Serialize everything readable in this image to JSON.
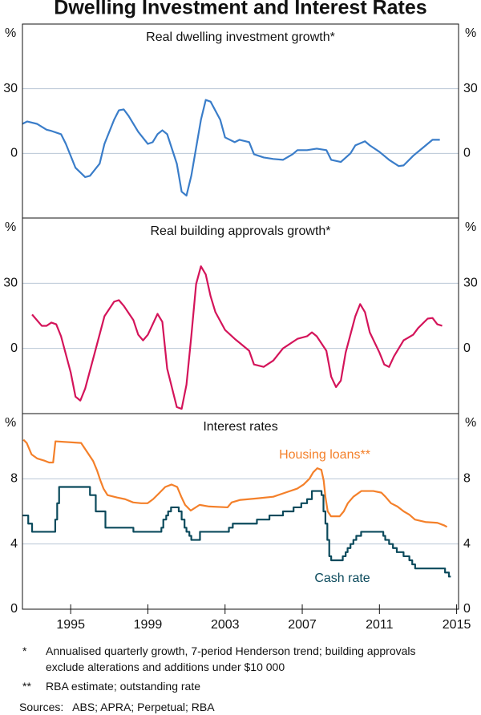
{
  "title": "Dwelling Investment and Interest Rates",
  "chart_data": [
    {
      "type": "line",
      "title": "Real dwelling investment growth*",
      "y_unit": "%",
      "y2_unit": "%",
      "xlim": [
        1992.5,
        2015.1
      ],
      "ylim": [
        -30,
        60
      ],
      "yticks": [
        0,
        30
      ],
      "y2lim": [
        -30,
        60
      ],
      "y2ticks": [
        0,
        30
      ],
      "grid": true,
      "series": [
        {
          "color": "#3a7dc9",
          "x": [
            1992.5,
            1992.75,
            1993.25,
            1993.75,
            1994,
            1994.5,
            1994.75,
            1995.25,
            1995.75,
            1996,
            1996.5,
            1996.75,
            1997.25,
            1997.5,
            1997.75,
            1998,
            1998.5,
            1999,
            1999.25,
            1999.5,
            1999.75,
            2000,
            2000.5,
            2000.75,
            2001,
            2001.25,
            2001.75,
            2002,
            2002.25,
            2002.75,
            2003,
            2003.5,
            2003.75,
            2004.25,
            2004.5,
            2005,
            2005.5,
            2006,
            2006.5,
            2006.75,
            2007.25,
            2007.75,
            2008.25,
            2008.5,
            2009,
            2009.5,
            2009.75,
            2010.25,
            2010.5,
            2011,
            2011.5,
            2012,
            2012.25,
            2012.75,
            2013.25,
            2013.75,
            2014.13
          ],
          "values": [
            13.7,
            14.8,
            13.7,
            11,
            10.4,
            8.9,
            4.4,
            -6.7,
            -11,
            -10.4,
            -4.8,
            4.4,
            15.6,
            20,
            20.4,
            17.4,
            10,
            4.4,
            5.2,
            8.9,
            10.7,
            8.9,
            -4.8,
            -17.8,
            -19.6,
            -10.4,
            15.6,
            24.8,
            24,
            15.6,
            7.4,
            5.2,
            6.3,
            5.2,
            -0.4,
            -1.9,
            -2.6,
            -3,
            -0.4,
            1.5,
            1.5,
            2.2,
            1.5,
            -3,
            -4,
            0,
            3.7,
            5.6,
            3.7,
            0.7,
            -3,
            -5.9,
            -5.6,
            -1.1,
            2.6,
            6.3,
            6.3
          ]
        }
      ]
    },
    {
      "type": "line",
      "title": "Real building approvals growth*",
      "y_unit": "%",
      "y2_unit": "%",
      "xlim": [
        1992.5,
        2015.1
      ],
      "ylim": [
        -30,
        60
      ],
      "yticks": [
        0,
        30
      ],
      "y2lim": [
        -30,
        60
      ],
      "y2ticks": [
        0,
        30
      ],
      "grid": true,
      "series": [
        {
          "color": "#d4145a",
          "x": [
            1993,
            1993.5,
            1993.75,
            1994,
            1994.25,
            1994.5,
            1995,
            1995.25,
            1995.5,
            1995.75,
            1996.25,
            1996.75,
            1997.25,
            1997.5,
            1997.75,
            1998.25,
            1998.5,
            1998.75,
            1999,
            1999.5,
            1999.75,
            2000,
            2000.5,
            2000.75,
            2001,
            2001.25,
            2001.5,
            2001.75,
            2002,
            2002.25,
            2002.5,
            2003,
            2003.5,
            2003.75,
            2004.25,
            2004.5,
            2005,
            2005.5,
            2006,
            2006.75,
            2007.25,
            2007.5,
            2007.75,
            2008.25,
            2008.5,
            2008.75,
            2009,
            2009.25,
            2009.75,
            2010,
            2010.25,
            2010.5,
            2011,
            2011.25,
            2011.5,
            2011.75,
            2012.25,
            2012.75,
            2013,
            2013.5,
            2013.75,
            2014,
            2014.25
          ],
          "values": [
            15.6,
            10.4,
            10.4,
            11.9,
            11.1,
            5.6,
            -11,
            -22.2,
            -24,
            -18.5,
            -1.9,
            14.8,
            21.5,
            22.2,
            19.6,
            13,
            6.3,
            3.7,
            6.3,
            15.9,
            12.2,
            -9.3,
            -27,
            -27.8,
            -16.7,
            5.6,
            29.6,
            37.8,
            34,
            24,
            16.7,
            8.5,
            4.4,
            2.6,
            -1.1,
            -7.4,
            -8.5,
            -5.6,
            0,
            4.4,
            5.6,
            7.4,
            5.6,
            -1.1,
            -13,
            -17.8,
            -14.8,
            -1.9,
            14.8,
            20.4,
            16.7,
            7.4,
            -1.9,
            -7.4,
            -8.5,
            -3.7,
            3.7,
            6.3,
            9.3,
            13.7,
            14,
            11.1,
            10.4
          ]
        }
      ]
    },
    {
      "type": "line",
      "title": "Interest rates",
      "y_unit": "%",
      "y2_unit": "%",
      "xlim": [
        1992.5,
        2015.1
      ],
      "ylim": [
        0,
        12
      ],
      "yticks": [
        0,
        4,
        8
      ],
      "y2lim": [
        0,
        12
      ],
      "y2ticks": [
        0,
        4,
        8
      ],
      "grid": true,
      "xticks": [
        1995,
        1999,
        2003,
        2007,
        2011,
        2015
      ],
      "series": [
        {
          "name": "Housing loans**",
          "color": "#f4802a",
          "x": [
            1992.55,
            1992.72,
            1992.97,
            1993.26,
            1993.67,
            1993.88,
            1994.09,
            1994.21,
            1995.54,
            1996.16,
            1996.37,
            1996.54,
            1996.7,
            1996.91,
            1997.41,
            1997.82,
            1998.24,
            1998.65,
            1998.98,
            1999.27,
            1999.61,
            1999.9,
            2000.23,
            2000.52,
            2000.73,
            2000.93,
            2001.22,
            2001.68,
            2002.18,
            2003.13,
            2003.34,
            2003.76,
            2004.67,
            2005.5,
            2006.12,
            2006.74,
            2007.07,
            2007.37,
            2007.57,
            2007.78,
            2007.99,
            2008.11,
            2008.2,
            2008.32,
            2008.49,
            2008.94,
            2009.15,
            2009.36,
            2009.65,
            2010.06,
            2010.68,
            2011.1,
            2011.31,
            2011.6,
            2011.93,
            2012.26,
            2012.55,
            2012.84,
            2013.38,
            2014,
            2014.34,
            2014.5
          ],
          "values": [
            10.4,
            10.2,
            9.5,
            9.25,
            9.1,
            9,
            9,
            10.3,
            10.2,
            9.1,
            8.5,
            7.9,
            7.4,
            7,
            6.85,
            6.75,
            6.55,
            6.5,
            6.5,
            6.75,
            7.15,
            7.5,
            7.65,
            7.5,
            6.9,
            6.4,
            6.05,
            6.4,
            6.3,
            6.25,
            6.55,
            6.7,
            6.8,
            6.9,
            7.15,
            7.4,
            7.65,
            8,
            8.4,
            8.65,
            8.55,
            7.9,
            6.9,
            6,
            5.7,
            5.7,
            6,
            6.5,
            6.9,
            7.25,
            7.25,
            7.15,
            6.9,
            6.5,
            6.3,
            6,
            5.8,
            5.5,
            5.35,
            5.3,
            5.15,
            5.05
          ]
        },
        {
          "name": "Cash rate",
          "color": "#0b4a5c",
          "step": "post",
          "x": [
            1992.5,
            1992.8,
            1993,
            1994.2,
            1994.3,
            1994.4,
            1996,
            1996.3,
            1996.8,
            1998.25,
            1999.7,
            1999.8,
            1999.95,
            2000.05,
            2000.2,
            2000.6,
            2000.75,
            2000.9,
            2001,
            2001.15,
            2001.25,
            2001.7,
            2003.2,
            2003.4,
            2004.65,
            2005.3,
            2006,
            2006.55,
            2006.95,
            2007.25,
            2007.5,
            2008,
            2008.1,
            2008.2,
            2008.3,
            2008.4,
            2008.5,
            2009.1,
            2009.25,
            2009.35,
            2009.5,
            2009.65,
            2009.8,
            2010.05,
            2011.2,
            2011.3,
            2011.5,
            2011.7,
            2011.9,
            2012.25,
            2012.55,
            2012.7,
            2012.85,
            2014.4,
            2014.6,
            2014.7
          ],
          "values": [
            5.75,
            5.25,
            4.75,
            5.5,
            6.5,
            7.5,
            7,
            6,
            5,
            4.75,
            5,
            5.5,
            5.75,
            6,
            6.25,
            6,
            5.5,
            5,
            4.75,
            4.5,
            4.25,
            4.75,
            5,
            5.25,
            5.5,
            5.75,
            6,
            6.25,
            6.5,
            6.75,
            7.25,
            7,
            6,
            5.25,
            4.25,
            3.25,
            3,
            3.25,
            3.5,
            3.75,
            4,
            4.25,
            4.5,
            4.75,
            4.5,
            4.25,
            4,
            3.75,
            3.5,
            3.25,
            3,
            2.75,
            2.5,
            2.25,
            2,
            2
          ]
        }
      ]
    }
  ],
  "notes": [
    {
      "marker": "*",
      "text": "Annualised quarterly growth, 7-period Henderson trend; building approvals exclude alterations and additions under $10 000"
    },
    {
      "marker": "**",
      "text": "RBA estimate; outstanding rate"
    }
  ],
  "sources": "Sources:   ABS; APRA; Perpetual; RBA"
}
